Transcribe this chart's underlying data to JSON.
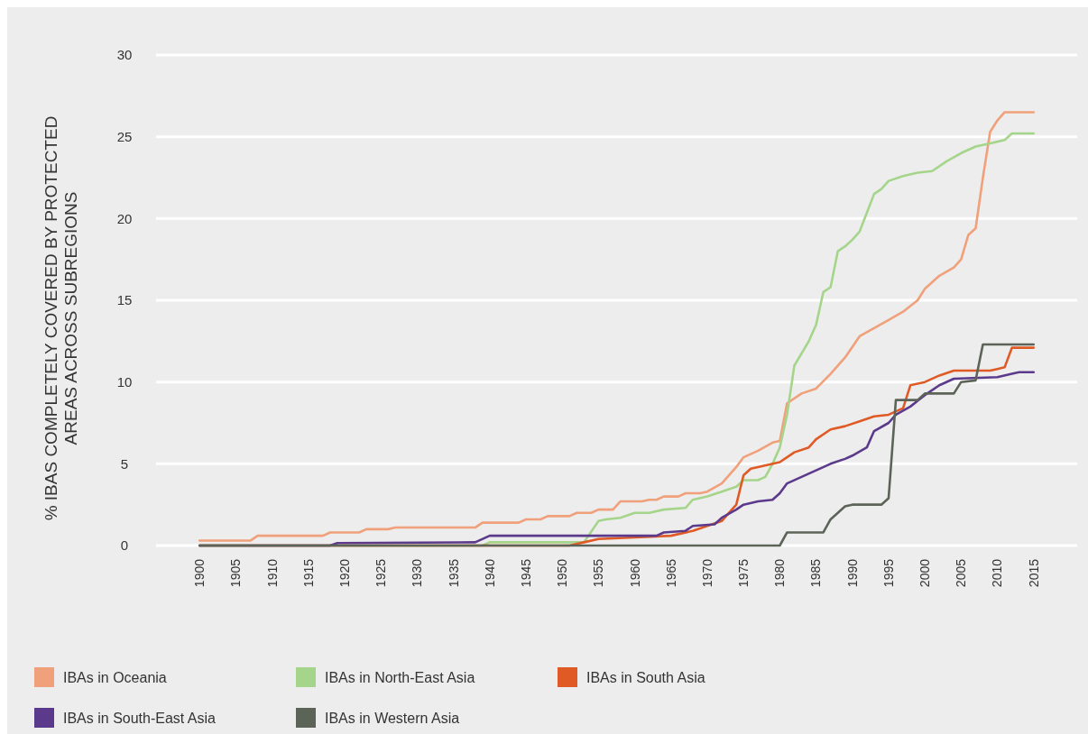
{
  "chart_data": {
    "type": "line",
    "ylabel": "% IBAS COMPLETELY COVERED BY PROTECTED AREAS ACROSS SUBREGIONS",
    "xlim": [
      1894,
      2021
    ],
    "xticks": [
      1900,
      1905,
      1910,
      1915,
      1920,
      1925,
      1930,
      1935,
      1940,
      1945,
      1950,
      1955,
      1960,
      1965,
      1970,
      1975,
      1980,
      1985,
      1990,
      1995,
      2000,
      2005,
      2010,
      2015
    ],
    "ylim": [
      0,
      30
    ],
    "yticks": [
      0,
      5,
      10,
      15,
      20,
      25,
      30
    ],
    "grid": "y",
    "legend": "bottom",
    "line_style": "solid",
    "marker": "none",
    "series": [
      {
        "name": "IBAs in Oceania",
        "color": "#f0a07a",
        "x": [
          1900,
          1907,
          1908,
          1917,
          1918,
          1922,
          1923,
          1926,
          1927,
          1938,
          1939,
          1944,
          1945,
          1947,
          1948,
          1951,
          1952,
          1954,
          1955,
          1957,
          1958,
          1961,
          1962,
          1963,
          1964,
          1966,
          1967,
          1969,
          1970,
          1972,
          1974,
          1975,
          1977,
          1979,
          1980,
          1981,
          1983,
          1985,
          1987,
          1989,
          1991,
          1993,
          1995,
          1997,
          1999,
          2000,
          2002,
          2004,
          2005,
          2006,
          2007,
          2008,
          2009,
          2010,
          2011,
          2015
        ],
        "values": [
          0.3,
          0.3,
          0.6,
          0.6,
          0.8,
          0.8,
          1.0,
          1.0,
          1.1,
          1.1,
          1.4,
          1.4,
          1.6,
          1.6,
          1.8,
          1.8,
          2.0,
          2.0,
          2.2,
          2.2,
          2.7,
          2.7,
          2.8,
          2.8,
          3.0,
          3.0,
          3.2,
          3.2,
          3.3,
          3.8,
          4.8,
          5.4,
          5.8,
          6.3,
          6.4,
          8.7,
          9.3,
          9.6,
          10.5,
          11.5,
          12.8,
          13.3,
          13.8,
          14.3,
          15.0,
          15.7,
          16.5,
          17.0,
          17.5,
          19.0,
          19.4,
          22.5,
          25.3,
          26.0,
          26.5,
          26.5
        ]
      },
      {
        "name": "IBAs in North-East Asia",
        "color": "#a5d58a",
        "x": [
          1900,
          1939,
          1940,
          1953,
          1955,
          1956,
          1958,
          1960,
          1962,
          1964,
          1967,
          1968,
          1970,
          1972,
          1974,
          1975,
          1977,
          1978,
          1979,
          1980,
          1981,
          1982,
          1984,
          1985,
          1986,
          1987,
          1988,
          1989,
          1990,
          1991,
          1993,
          1994,
          1995,
          1997,
          1999,
          2001,
          2003,
          2005,
          2007,
          2009,
          2011,
          2012,
          2015
        ],
        "values": [
          0,
          0,
          0.2,
          0.2,
          1.5,
          1.6,
          1.7,
          2.0,
          2.0,
          2.2,
          2.3,
          2.8,
          3.0,
          3.3,
          3.6,
          4.0,
          4.0,
          4.2,
          5.0,
          6.0,
          8.0,
          11.0,
          12.5,
          13.5,
          15.5,
          15.8,
          18.0,
          18.3,
          18.7,
          19.2,
          21.5,
          21.8,
          22.3,
          22.6,
          22.8,
          22.9,
          23.5,
          24.0,
          24.4,
          24.6,
          24.8,
          25.2,
          25.2
        ]
      },
      {
        "name": "IBAs in South Asia",
        "color": "#e05a26",
        "x": [
          1900,
          1951,
          1953,
          1955,
          1960,
          1965,
          1968,
          1970,
          1972,
          1973,
          1974,
          1975,
          1976,
          1977,
          1980,
          1982,
          1984,
          1985,
          1987,
          1989,
          1991,
          1993,
          1995,
          1997,
          1998,
          2000,
          2002,
          2004,
          2009,
          2010,
          2011,
          2012,
          2015
        ],
        "values": [
          0,
          0,
          0.2,
          0.4,
          0.5,
          0.6,
          0.9,
          1.2,
          1.5,
          2.0,
          2.5,
          4.3,
          4.7,
          4.8,
          5.1,
          5.7,
          6.0,
          6.5,
          7.1,
          7.3,
          7.6,
          7.9,
          8.0,
          8.4,
          9.8,
          10.0,
          10.4,
          10.7,
          10.7,
          10.8,
          10.9,
          12.1,
          12.1
        ]
      },
      {
        "name": "IBAs in South-East Asia",
        "color": "#5b3a8c",
        "x": [
          1900,
          1918,
          1919,
          1938,
          1940,
          1963,
          1964,
          1967,
          1968,
          1971,
          1972,
          1974,
          1975,
          1977,
          1979,
          1980,
          1981,
          1983,
          1985,
          1987,
          1989,
          1990,
          1992,
          1993,
          1995,
          1996,
          1998,
          2000,
          2002,
          2004,
          2010,
          2012,
          2013,
          2015
        ],
        "values": [
          0,
          0,
          0.15,
          0.2,
          0.6,
          0.6,
          0.8,
          0.9,
          1.2,
          1.3,
          1.7,
          2.2,
          2.5,
          2.7,
          2.8,
          3.2,
          3.8,
          4.2,
          4.6,
          5.0,
          5.3,
          5.5,
          6.0,
          7.0,
          7.5,
          8.0,
          8.5,
          9.2,
          9.8,
          10.2,
          10.3,
          10.5,
          10.6,
          10.6
        ]
      },
      {
        "name": "IBAs in Western Asia",
        "color": "#5c6458",
        "x": [
          1900,
          1980,
          1981,
          1986,
          1987,
          1989,
          1990,
          1994,
          1995,
          1996,
          1999,
          2000,
          2004,
          2005,
          2007,
          2008,
          2015
        ],
        "values": [
          0,
          0,
          0.8,
          0.8,
          1.6,
          2.4,
          2.5,
          2.5,
          2.9,
          8.9,
          8.9,
          9.3,
          9.3,
          10.0,
          10.1,
          12.3,
          12.3
        ]
      }
    ]
  }
}
